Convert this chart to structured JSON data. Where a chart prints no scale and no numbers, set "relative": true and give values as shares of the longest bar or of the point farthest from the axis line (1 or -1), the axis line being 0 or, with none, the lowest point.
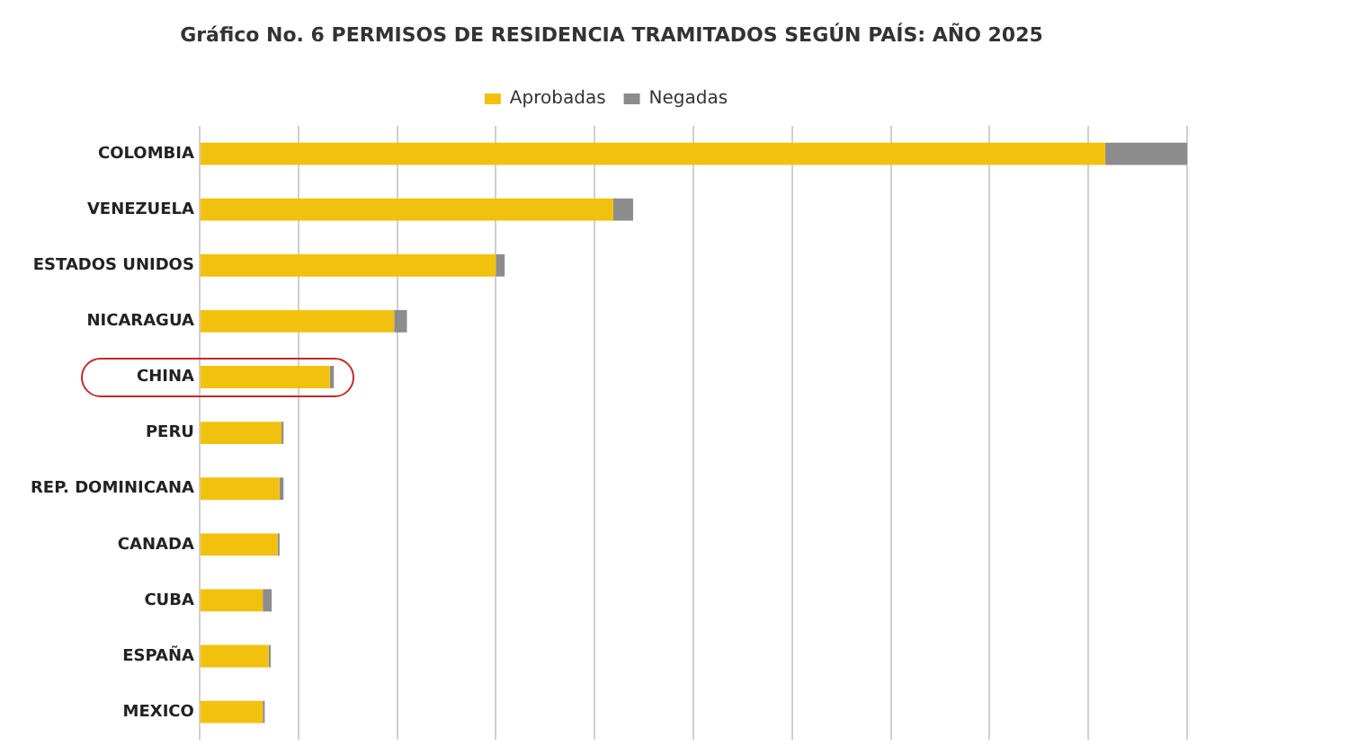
{
  "chart_data": {
    "type": "bar",
    "title": "Gráfico No. 6   PERMISOS DE RESIDENCIA TRAMITADOS SEGÚN PAÍS: AÑO 2025",
    "orientation": "horizontal",
    "stacked": true,
    "relative": true,
    "grid": "x",
    "legend": "top",
    "categories": [
      "COLOMBIA",
      "VENEZUELA",
      "ESTADOS UNIDOS",
      "NICARAGUA",
      "CHINA",
      "PERU",
      "REP. DOMINICANA",
      "CANADA",
      "CUBA",
      "ESPAÑA",
      "MEXICO"
    ],
    "series": [
      {
        "name": "Aprobadas",
        "color": "#f2c10e",
        "values": [
          0.917,
          0.419,
          0.3,
          0.197,
          0.132,
          0.083,
          0.081,
          0.079,
          0.064,
          0.07,
          0.064
        ]
      },
      {
        "name": "Negadas",
        "color": "#8c8c8c",
        "values": [
          0.083,
          0.02,
          0.009,
          0.013,
          0.004,
          0.002,
          0.004,
          0.002,
          0.009,
          0.002,
          0.002
        ]
      }
    ]
  }
}
